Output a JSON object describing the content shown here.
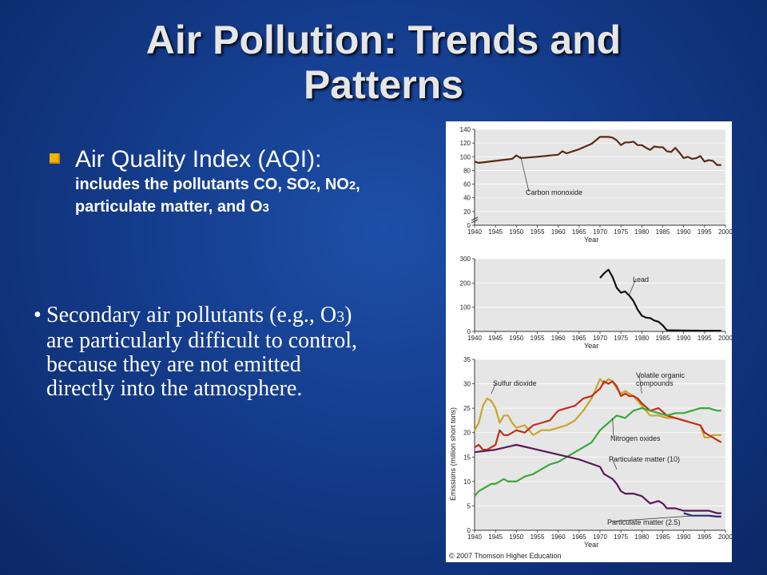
{
  "slide": {
    "title_line1": "Air Pollution: Trends and",
    "title_line2": "Patterns",
    "bullet1_head": "Air Quality Index (AQI):",
    "bullet1_sub_a": "includes the pollutants CO, SO",
    "bullet1_sub_b": ", NO",
    "bullet1_sub_c": ",",
    "bullet1_sub_d": "particulate matter, and O",
    "sub_2": "2",
    "sub_3": "3",
    "bullet2_line1a": "Secondary air pollutants (e.g., O",
    "bullet2_line1b": ")",
    "bullet2_line2": "are particularly difficult to control,",
    "bullet2_line3": "because they are not emitted",
    "bullet2_line4": "directly into the atmosphere.",
    "bullet_marker": "•",
    "copyright": "© 2007 Thomson Higher Education"
  },
  "colors": {
    "bullet": "#f2b500",
    "carbon_monoxide": "#5a2a12",
    "lead": "#111111",
    "sulfur_dioxide": "#c8a62a",
    "voc": "#c03018",
    "nitrogen_oxides": "#3aa83a",
    "pm10": "#5a1a5a",
    "pm25": "#2a2a7a",
    "plot_bg": "#e6e6e6"
  },
  "chart_data": [
    {
      "type": "line",
      "ylabel": "",
      "xlabel": "Year",
      "xlim": [
        1940,
        2000
      ],
      "ylim": [
        0,
        140
      ],
      "yticks": [
        "0",
        "20",
        "40",
        "60",
        "80",
        "100",
        "120",
        "140"
      ],
      "yticks_num": [
        0,
        20,
        40,
        60,
        80,
        100,
        120,
        140
      ],
      "ybreak": true,
      "series": [
        {
          "name": "Carbon monoxide",
          "color": "#5a2a12",
          "x": [
            1940,
            1941,
            1945,
            1949,
            1950,
            1951,
            1955,
            1960,
            1961,
            1962,
            1965,
            1968,
            1970,
            1971,
            1972,
            1973,
            1974,
            1975,
            1976,
            1977,
            1978,
            1979,
            1980,
            1981,
            1982,
            1983,
            1984,
            1985,
            1986,
            1987,
            1988,
            1989,
            1990,
            1991,
            1992,
            1993,
            1994,
            1995,
            1996,
            1997,
            1998,
            1999
          ],
          "y": [
            93,
            91,
            94,
            97,
            102,
            98,
            100,
            103,
            108,
            105,
            111,
            119,
            129,
            129,
            129,
            128,
            124,
            117,
            121,
            121,
            122,
            117,
            117,
            113,
            110,
            115,
            114,
            114,
            108,
            107,
            113,
            106,
            98,
            100,
            97,
            98,
            101,
            93,
            95,
            94,
            88,
            88
          ]
        }
      ]
    },
    {
      "type": "line",
      "xlabel": "Year",
      "xlim": [
        1940,
        2000
      ],
      "ylim": [
        0,
        300
      ],
      "yticks": [
        "0",
        "100",
        "200",
        "300"
      ],
      "yticks_num": [
        0,
        100,
        200,
        300
      ],
      "series": [
        {
          "name": "Lead",
          "color": "#111111",
          "x": [
            1970,
            1971,
            1972,
            1973,
            1974,
            1975,
            1976,
            1977,
            1978,
            1979,
            1980,
            1981,
            1982,
            1983,
            1984,
            1985,
            1986,
            1990,
            1995,
            1999
          ],
          "y": [
            221,
            240,
            255,
            225,
            180,
            160,
            165,
            148,
            125,
            90,
            65,
            57,
            55,
            45,
            40,
            25,
            5,
            4,
            3,
            3
          ]
        }
      ]
    },
    {
      "type": "line",
      "ylabel": "Emissions (million short tons)",
      "xlabel": "Year",
      "xlim": [
        1940,
        2000
      ],
      "ylim": [
        0,
        35
      ],
      "yticks": [
        "0",
        "5",
        "10",
        "15",
        "20",
        "25",
        "30",
        "35"
      ],
      "yticks_num": [
        0,
        5,
        10,
        15,
        20,
        25,
        30,
        35
      ],
      "series": [
        {
          "name": "Sulfur dioxide",
          "color": "#c8a62a",
          "x": [
            1940,
            1941,
            1942,
            1943,
            1944,
            1945,
            1946,
            1947,
            1948,
            1949,
            1950,
            1952,
            1954,
            1956,
            1958,
            1960,
            1962,
            1964,
            1966,
            1968,
            1970,
            1971,
            1972,
            1973,
            1974,
            1975,
            1976,
            1977,
            1978,
            1979,
            1980,
            1982,
            1984,
            1986,
            1988,
            1990,
            1992,
            1994,
            1995,
            1996,
            1997,
            1998,
            1999
          ],
          "y": [
            20.5,
            22,
            25.5,
            27,
            26.5,
            25,
            22,
            23.5,
            23.5,
            22,
            21,
            21.5,
            19.5,
            20.5,
            20.5,
            21,
            21.5,
            22.5,
            24.5,
            27,
            31,
            30,
            31,
            30.5,
            29,
            28,
            28.5,
            28,
            27.5,
            26.5,
            25.5,
            23.5,
            23.5,
            23,
            23,
            22.5,
            22,
            21.5,
            19,
            19,
            19.5,
            19.5,
            19.5
          ]
        },
        {
          "name": "Volatile organic compounds",
          "color": "#c03018",
          "x": [
            1940,
            1941,
            1942,
            1943,
            1944,
            1945,
            1946,
            1947,
            1948,
            1950,
            1952,
            1954,
            1956,
            1958,
            1960,
            1962,
            1964,
            1966,
            1968,
            1970,
            1971,
            1972,
            1973,
            1974,
            1975,
            1976,
            1977,
            1978,
            1979,
            1980,
            1982,
            1984,
            1986,
            1988,
            1990,
            1992,
            1994,
            1995,
            1996,
            1997,
            1998,
            1999
          ],
          "y": [
            17,
            17.5,
            16.5,
            16.5,
            17,
            17.5,
            20.5,
            19.5,
            19.5,
            20.5,
            20,
            21.5,
            22,
            22.5,
            24.5,
            25,
            25.5,
            27,
            27.5,
            29,
            30.5,
            30,
            30.5,
            29.5,
            27.5,
            28,
            27.5,
            27.5,
            27,
            26,
            24.5,
            25,
            23.5,
            23,
            22.5,
            22,
            21.5,
            20,
            19.5,
            19,
            18.5,
            18
          ]
        },
        {
          "name": "Nitrogen oxides",
          "color": "#3aa83a",
          "x": [
            1940,
            1941,
            1942,
            1943,
            1944,
            1945,
            1946,
            1947,
            1948,
            1950,
            1952,
            1954,
            1956,
            1958,
            1960,
            1962,
            1964,
            1966,
            1968,
            1970,
            1972,
            1974,
            1976,
            1978,
            1980,
            1982,
            1984,
            1986,
            1988,
            1990,
            1992,
            1994,
            1996,
            1998,
            1999
          ],
          "y": [
            7,
            8,
            8.5,
            9,
            9.5,
            9.5,
            10,
            10.5,
            10,
            10,
            11,
            11.5,
            12.5,
            13.5,
            14,
            15,
            16,
            17,
            18,
            20.5,
            22,
            23.5,
            23,
            24.5,
            25,
            24.5,
            24,
            23.5,
            24,
            24,
            24.5,
            25,
            25,
            24.5,
            24.5
          ]
        },
        {
          "name": "Particulate matter (10)",
          "color": "#5a1a5a",
          "x": [
            1940,
            1945,
            1950,
            1955,
            1960,
            1965,
            1970,
            1971,
            1972,
            1973,
            1974,
            1975,
            1976,
            1978,
            1980,
            1982,
            1984,
            1985,
            1986,
            1988,
            1990,
            1992,
            1994,
            1996,
            1998,
            1999
          ],
          "y": [
            16,
            16.5,
            17.5,
            16.5,
            15.5,
            14.5,
            13,
            11.5,
            11,
            10.5,
            9.5,
            8,
            7.5,
            7.5,
            7,
            5.5,
            6,
            5.5,
            4.5,
            4.5,
            4,
            4,
            4,
            4,
            3.5,
            3.5
          ]
        },
        {
          "name": "Particulate matter (2.5)",
          "color": "#2a2a7a",
          "x": [
            1990,
            1992,
            1994,
            1996,
            1998,
            1999
          ],
          "y": [
            3.5,
            3,
            3,
            3,
            2.8,
            2.8
          ]
        }
      ]
    }
  ]
}
